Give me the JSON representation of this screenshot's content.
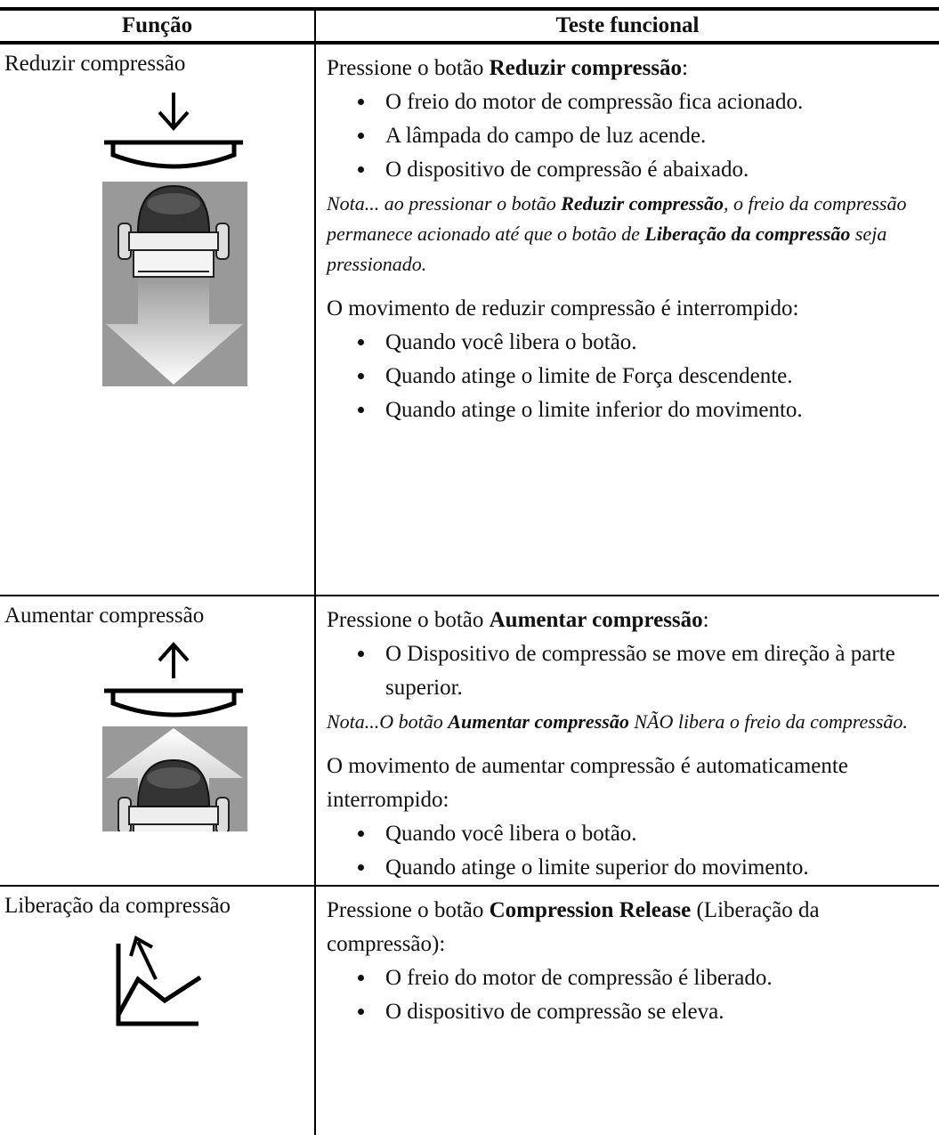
{
  "table": {
    "headers": [
      "Função",
      "Teste funcional"
    ],
    "rows": [
      {
        "function": "Reduzir compressão",
        "test": [
          {
            "runs": [
              {
                "text": "Pressione o botão "
              },
              {
                "text": "Reduzir compressão",
                "bold": true
              },
              {
                "text": ":"
              }
            ]
          },
          {
            "bullets": [
              "O freio do motor de compressão fica acionado.",
              "A lâmpada do campo de luz acende.",
              "O dispositivo de compressão é abaixado."
            ]
          },
          {
            "italic": true,
            "runs": [
              {
                "text": "Nota... ao pressionar o botão "
              },
              {
                "text": "Reduzir compressão",
                "bold": true
              },
              {
                "text": ", o freio da compressão permanece acionado até que o botão de "
              },
              {
                "text": "Liberação da compressão",
                "bold": true
              },
              {
                "text": " seja pressionado."
              }
            ]
          },
          {
            "runs": [
              {
                "text": "O movimento de reduzir compressão é interrompido:"
              }
            ]
          },
          {
            "bullets": [
              "Quando você libera o botão.",
              "Quando atinge o limite de Força descendente.",
              "Quando atinge o limite inferior do movimento."
            ]
          }
        ]
      },
      {
        "function": "Aumentar compressão",
        "test": [
          {
            "runs": [
              {
                "text": "Pressione o botão "
              },
              {
                "text": "Aumentar compressão",
                "bold": true
              },
              {
                "text": ":"
              }
            ]
          },
          {
            "bullets": [
              "O Dispositivo de compressão se move em direção à parte superior."
            ]
          },
          {
            "italic": true,
            "runs": [
              {
                "text": "Nota...O botão "
              },
              {
                "text": "Aumentar compressão",
                "bold": true
              },
              {
                "text": " NÃO libera o freio da compressão."
              }
            ]
          },
          {
            "runs": [
              {
                "text": "O movimento de aumentar compressão é automaticamente interrompido:"
              }
            ]
          },
          {
            "bullets": [
              "Quando você libera o botão.",
              "Quando atinge o limite superior do movimento."
            ]
          }
        ]
      },
      {
        "function": "Liberação da compressão",
        "test": [
          {
            "runs": [
              {
                "text": "Pressione o botão "
              },
              {
                "text": "Compression Release",
                "bold": true
              },
              {
                "text": " (Liberação da compressão):"
              }
            ]
          },
          {
            "bullets": [
              "O freio do motor de compressão é liberado.",
              "O dispositivo de compressão se eleva."
            ]
          }
        ]
      }
    ]
  }
}
